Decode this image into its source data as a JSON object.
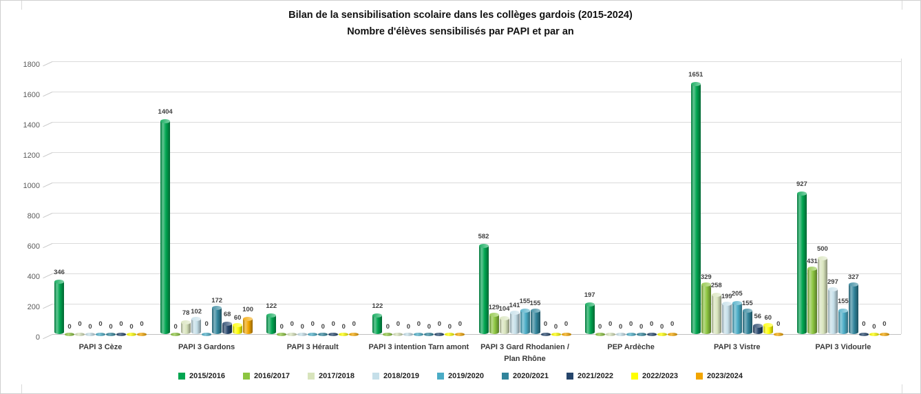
{
  "chart_data": {
    "type": "bar",
    "style": "3d-cylinder",
    "title": "Bilan de la sensibilisation scolaire dans les collèges gardois (2015-2024)",
    "subtitle": "Nombre d'élèves sensibilisés par PAPI et par an",
    "categories": [
      "PAPI 3 Cèze",
      "PAPI 3 Gardons",
      "PAPI 3 Hérault",
      "PAPI 3 intention Tarn amont",
      "PAPI 3 Gard Rhodanien / Plan Rhône",
      "PEP Ardèche",
      "PAPI 3 Vistre",
      "PAPI 3 Vidourle"
    ],
    "series": [
      {
        "name": "2015/2016",
        "color": "#00A550",
        "values": [
          346,
          1404,
          122,
          122,
          582,
          197,
          1651,
          927
        ]
      },
      {
        "name": "2016/2017",
        "color": "#8CC540",
        "values": [
          0,
          0,
          0,
          0,
          129,
          0,
          329,
          431
        ]
      },
      {
        "name": "2017/2018",
        "color": "#D8E4BC",
        "values": [
          0,
          78,
          0,
          0,
          104,
          0,
          258,
          500
        ]
      },
      {
        "name": "2018/2019",
        "color": "#C5DFE9",
        "values": [
          0,
          102,
          0,
          0,
          141,
          0,
          199,
          297
        ]
      },
      {
        "name": "2019/2020",
        "color": "#4BACC6",
        "values": [
          0,
          0,
          0,
          0,
          155,
          0,
          205,
          155
        ]
      },
      {
        "name": "2020/2021",
        "color": "#31849B",
        "values": [
          0,
          172,
          0,
          0,
          155,
          0,
          155,
          327
        ]
      },
      {
        "name": "2021/2022",
        "color": "#25456B",
        "values": [
          0,
          68,
          0,
          0,
          0,
          0,
          56,
          0
        ]
      },
      {
        "name": "2022/2023",
        "color": "#FFFF00",
        "values": [
          0,
          60,
          0,
          0,
          0,
          0,
          60,
          0
        ]
      },
      {
        "name": "2023/2024",
        "color": "#F2A500",
        "values": [
          0,
          100,
          0,
          0,
          0,
          0,
          0,
          0
        ]
      }
    ],
    "ylim": [
      0,
      1800
    ],
    "y_ticks": [
      0,
      200,
      400,
      600,
      800,
      1000,
      1200,
      1400,
      1600,
      1800
    ],
    "grid": true,
    "legend_position": "bottom"
  },
  "colors": {
    "gridline": "#dadada",
    "axis_label": "#595959",
    "data_label": "#3f3f3f",
    "category_label": "#3a3a3a",
    "legend_label": "#1f1f1f",
    "title": "#111111"
  }
}
